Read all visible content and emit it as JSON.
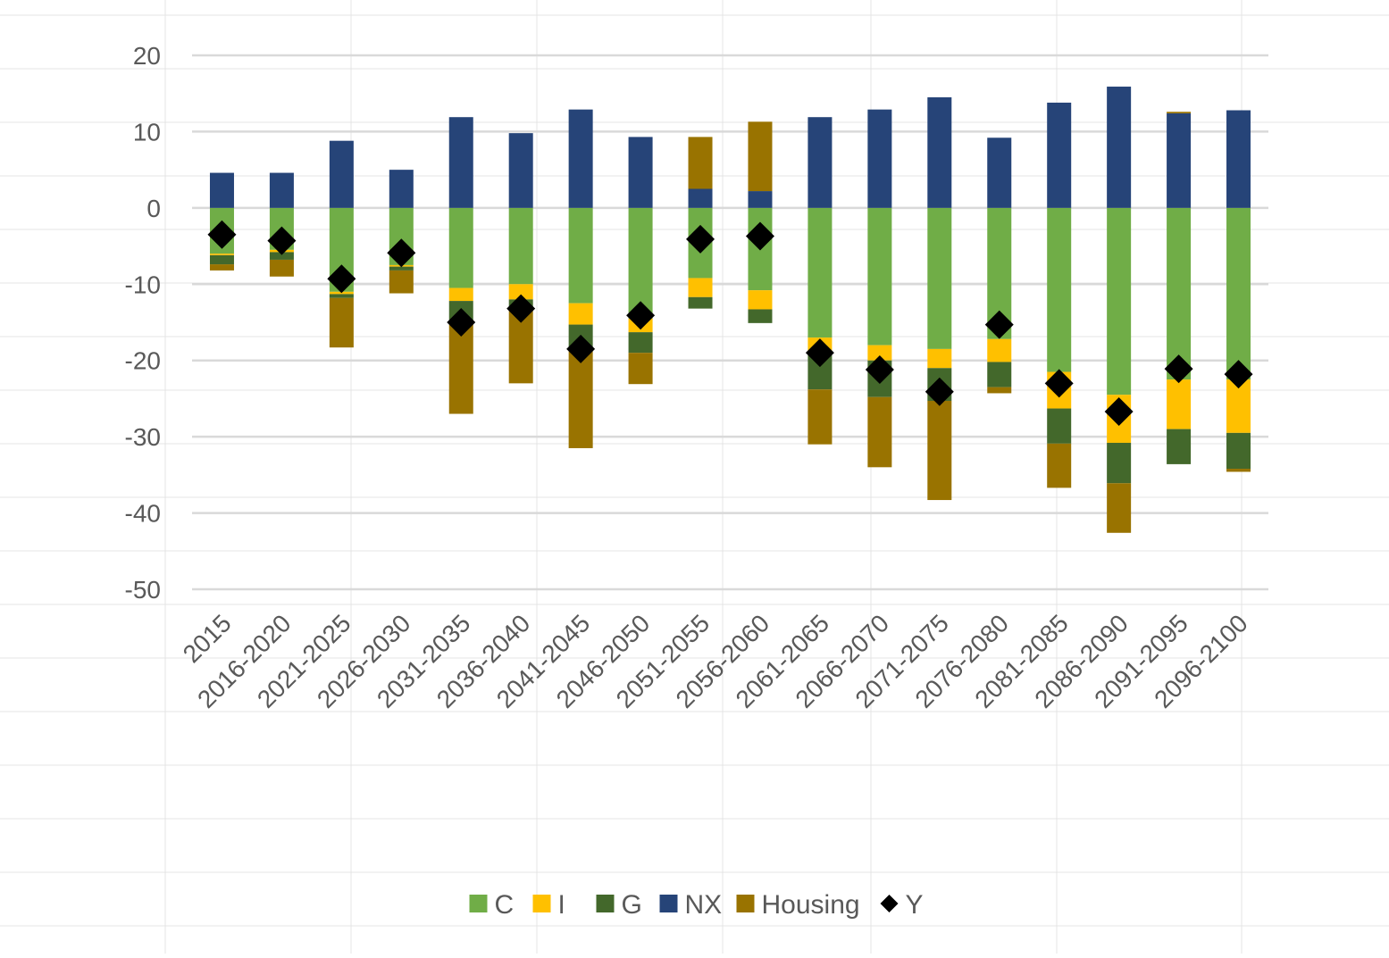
{
  "chart_data": {
    "type": "bar",
    "stacked": true,
    "categories": [
      "2015",
      "2016-2020",
      "2021-2025",
      "2026-2030",
      "2031-2035",
      "2036-2040",
      "2041-2045",
      "2046-2050",
      "2051-2055",
      "2056-2060",
      "2061-2065",
      "2066-2070",
      "2071-2075",
      "2076-2080",
      "2081-2085",
      "2086-2090",
      "2091-2095",
      "2096-2100"
    ],
    "ylim": [
      -50,
      20
    ],
    "yticks": [
      20,
      10,
      0,
      -10,
      -20,
      -30,
      -40,
      -50
    ],
    "grid": true,
    "legend_position": "bottom",
    "series": [
      {
        "name": "C",
        "color": "#70AD47",
        "values": [
          -6.0,
          -5.5,
          -11.0,
          -7.5,
          -10.5,
          -10.0,
          -12.5,
          -14.5,
          -9.2,
          -10.8,
          -17.0,
          -18.0,
          -18.5,
          -17.2,
          -21.5,
          -24.5,
          -22.5,
          -22.5
        ]
      },
      {
        "name": "I",
        "color": "#FFC000",
        "values": [
          -0.2,
          -0.3,
          -0.3,
          -0.2,
          -1.7,
          -2.0,
          -2.8,
          -1.8,
          -2.5,
          -2.5,
          -2.0,
          -2.0,
          -2.5,
          -3.0,
          -4.8,
          -6.3,
          -6.5,
          -7.0
        ]
      },
      {
        "name": "G",
        "color": "#43682B",
        "values": [
          -1.2,
          -1.0,
          -0.5,
          -0.5,
          -2.5,
          -1.5,
          -3.2,
          -2.7,
          -1.5,
          -1.8,
          -4.8,
          -4.8,
          -4.3,
          -3.3,
          -4.6,
          -5.3,
          -4.6,
          -4.7
        ]
      },
      {
        "name": "NX",
        "color": "#264478",
        "values": [
          4.6,
          4.6,
          8.8,
          5.0,
          11.9,
          9.8,
          12.9,
          9.3,
          2.5,
          2.2,
          11.9,
          12.9,
          14.5,
          9.2,
          13.8,
          15.9,
          12.4,
          12.8
        ]
      },
      {
        "name": "Housing",
        "color": "#997300",
        "values": [
          -0.8,
          -2.2,
          -6.5,
          -3.0,
          -12.3,
          -9.5,
          -13.0,
          -4.1,
          6.8,
          9.1,
          -7.2,
          -9.2,
          -13.0,
          -0.8,
          -5.8,
          -6.5,
          0.2,
          -0.4
        ]
      }
    ],
    "markers": {
      "name": "Y",
      "color": "#000000",
      "values": [
        -3.5,
        -4.3,
        -9.3,
        -5.9,
        -15.0,
        -13.2,
        -18.5,
        -14.1,
        -4.1,
        -3.7,
        -19.0,
        -21.2,
        -24.1,
        -15.3,
        -23.0,
        -26.7,
        -21.1,
        -21.8
      ]
    }
  }
}
